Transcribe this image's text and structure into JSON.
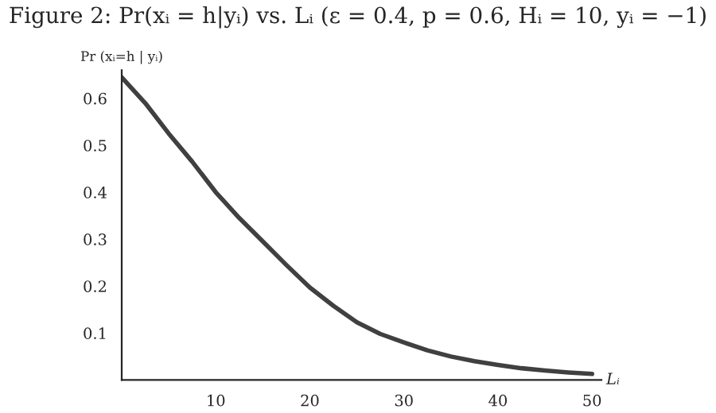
{
  "chart_data": {
    "type": "line",
    "title": "Figure 2: Pr(xᵢ = h|yᵢ) vs. Lᵢ (ε = 0.4, p = 0.6, Hᵢ = 10, yᵢ = −1)",
    "xlabel": "Lᵢ",
    "ylabel": "Pr (xᵢ=h | yᵢ)",
    "series": [
      {
        "color": "#404040",
        "x": [
          0,
          2.5,
          5,
          7.5,
          10,
          12.5,
          15,
          17.5,
          20,
          22.5,
          25,
          27.5,
          30,
          32.5,
          35,
          37.5,
          40,
          42.5,
          45,
          47.5,
          50
        ],
        "values": [
          0.645,
          0.59,
          0.525,
          0.465,
          0.4,
          0.345,
          0.295,
          0.245,
          0.197,
          0.158,
          0.123,
          0.098,
          0.08,
          0.063,
          0.05,
          0.04,
          0.032,
          0.025,
          0.02,
          0.016,
          0.013
        ]
      }
    ],
    "xlim": [
      0,
      51
    ],
    "ylim": [
      0,
      0.66
    ],
    "xticks": [
      10,
      20,
      30,
      40,
      50
    ],
    "yticks": [
      0.1,
      0.2,
      0.3,
      0.4,
      0.5,
      0.6
    ],
    "grid": false,
    "legend": false,
    "marker": "none",
    "line_style": "solid"
  }
}
